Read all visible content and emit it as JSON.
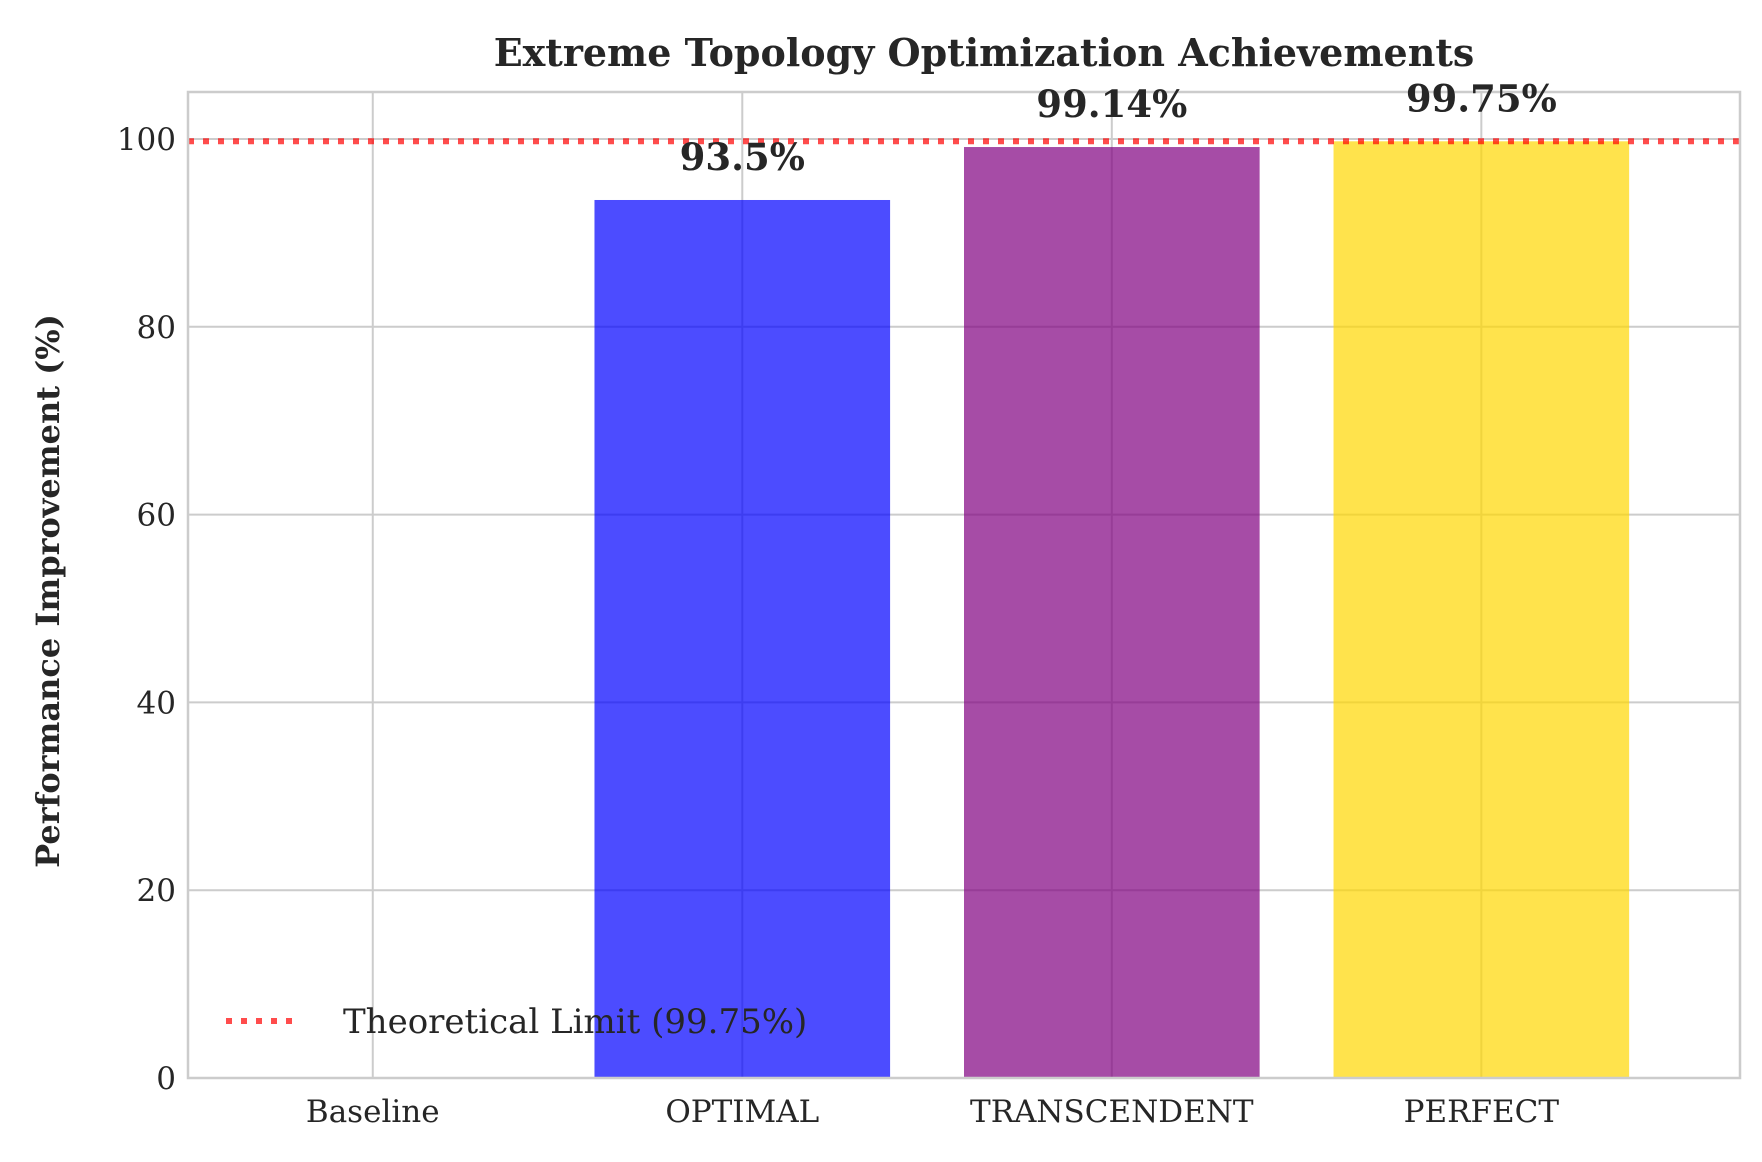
{
  "chart_data": {
    "type": "bar",
    "title": "Extreme Topology Optimization Achievements",
    "xlabel": "",
    "ylabel": "Performance Improvement (%)",
    "categories": [
      "Baseline",
      "OPTIMAL",
      "TRANSCENDENT",
      "PERFECT"
    ],
    "values": [
      0,
      93.5,
      99.14,
      99.75
    ],
    "value_labels": [
      "",
      "93.5%",
      "99.14%",
      "99.75%"
    ],
    "bar_colors": [
      "#0000ff",
      "#0000ff",
      "#800080",
      "#ffd700"
    ],
    "bar_opacity": 0.7,
    "ylim": [
      0,
      105
    ],
    "yticks": [
      0,
      20,
      40,
      60,
      80,
      100
    ],
    "grid": true,
    "reference_line": {
      "value": 99.75,
      "label": "Theoretical Limit (99.75%)",
      "color": "#ff0000",
      "style": "dotted"
    },
    "legend": {
      "placement": "lower-left"
    }
  }
}
